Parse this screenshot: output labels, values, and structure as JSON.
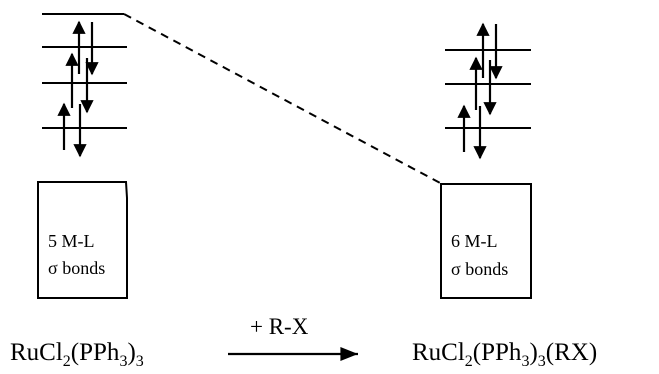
{
  "left_complex": {
    "box_line1": "5 M-L",
    "box_line2": "σ bonds",
    "formula": {
      "part1": "RuCl",
      "sub1": "2",
      "part2": "(PPh",
      "sub2": "3",
      "part3": ")",
      "sub3": "3",
      "part4": ""
    }
  },
  "right_complex": {
    "box_line1": "6 M-L",
    "box_line2": "σ bonds",
    "formula": {
      "part1": "RuCl",
      "sub1": "2",
      "part2": "(PPh",
      "sub2": "3",
      "part3": ")",
      "sub3": "3",
      "part4": "(RX)"
    }
  },
  "reaction": {
    "reagent": "+ R-X"
  },
  "colors": {
    "ink": "#000000",
    "background": "#ffffff"
  }
}
